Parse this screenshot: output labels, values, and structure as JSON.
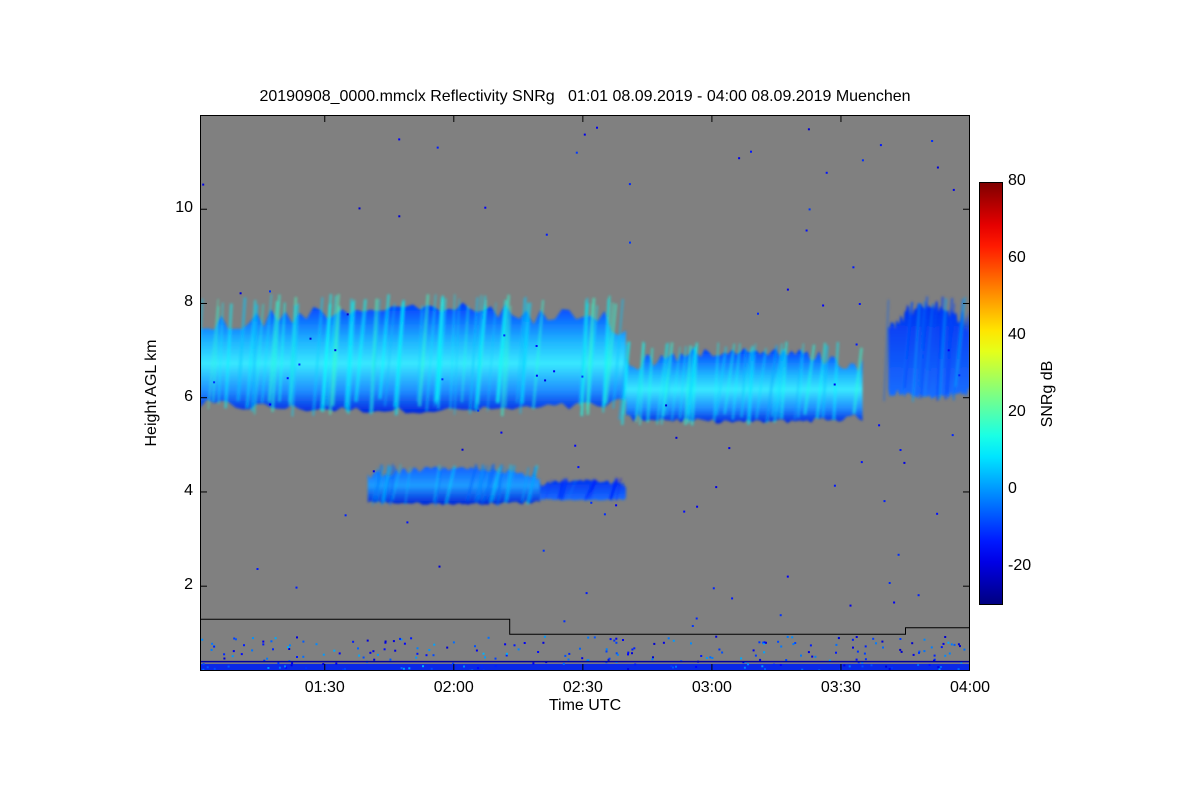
{
  "chart_data": {
    "type": "heatmap",
    "title": "20190908_0000.mmclx Reflectivity SNRg   01:01 08.09.2019 - 04:00 08.09.2019 Muenchen",
    "xlabel": "Time UTC",
    "ylabel": "Height AGL km",
    "colorbar_label": "SNRg dB",
    "x_range_minutes_utc": [
      61,
      240
    ],
    "y_range_km": [
      0.2,
      12.0
    ],
    "x_ticks": [
      {
        "label": "01:30",
        "minute": 90
      },
      {
        "label": "02:00",
        "minute": 120
      },
      {
        "label": "02:30",
        "minute": 150
      },
      {
        "label": "03:00",
        "minute": 180
      },
      {
        "label": "03:30",
        "minute": 210
      },
      {
        "label": "04:00",
        "minute": 240
      }
    ],
    "y_ticks": [
      {
        "label": "2",
        "value": 2
      },
      {
        "label": "4",
        "value": 4
      },
      {
        "label": "6",
        "value": 6
      },
      {
        "label": "8",
        "value": 8
      },
      {
        "label": "10",
        "value": 10
      }
    ],
    "colorbar_range": [
      -30,
      80
    ],
    "colorbar_ticks": [
      {
        "label": "80",
        "value": 80
      },
      {
        "label": "60",
        "value": 60
      },
      {
        "label": "40",
        "value": 40
      },
      {
        "label": "20",
        "value": 20
      },
      {
        "label": "0",
        "value": 0
      },
      {
        "label": "-20",
        "value": -20
      }
    ],
    "colormap": "jet",
    "background_color": "#808080",
    "grid": false,
    "layers": [
      {
        "name": "upper-cloud-layer",
        "t_start": 61,
        "t_end": 160,
        "base_km": 5.6,
        "top_km": 8.2,
        "snr_db": 10
      },
      {
        "name": "upper-cloud-layer-east",
        "t_start": 160,
        "t_end": 215,
        "base_km": 5.4,
        "top_km": 7.2,
        "snr_db": 8
      },
      {
        "name": "upper-cloud-patch-east",
        "t_start": 221,
        "t_end": 240,
        "base_km": 5.9,
        "top_km": 8.2,
        "snr_db": -5
      },
      {
        "name": "mid-cloud-layer",
        "t_start": 100,
        "t_end": 140,
        "base_km": 3.7,
        "top_km": 4.6,
        "snr_db": 0
      },
      {
        "name": "mid-cloud-patch",
        "t_start": 140,
        "t_end": 160,
        "base_km": 3.8,
        "top_km": 4.3,
        "snr_db": -10
      }
    ],
    "overlay_line": {
      "description": "black step line",
      "points": [
        {
          "minute": 61,
          "km": 1.3
        },
        {
          "minute": 133,
          "km": 1.3
        },
        {
          "minute": 133,
          "km": 0.98
        },
        {
          "minute": 225,
          "km": 0.98
        },
        {
          "minute": 225,
          "km": 1.12
        },
        {
          "minute": 240,
          "km": 1.12
        }
      ]
    }
  }
}
